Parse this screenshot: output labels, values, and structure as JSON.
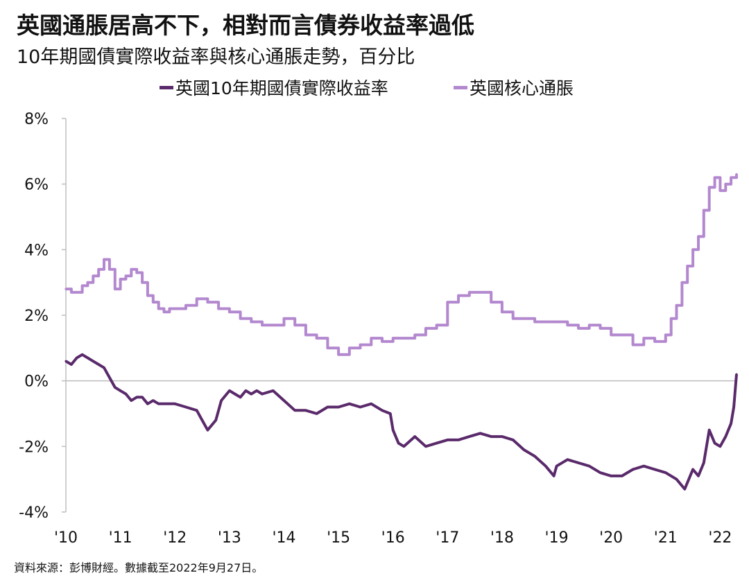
{
  "chart_data": {
    "type": "line",
    "title": "英國通脹居高不下，相對而言債券收益率過低",
    "subtitle": "10年期國債實際收益率與核心通脹走勢，百分比",
    "ylim": [
      -4,
      8
    ],
    "y_ticks": [
      "8%",
      "6%",
      "4%",
      "2%",
      "0%",
      "-2%",
      "-4%"
    ],
    "y_tick_values": [
      8,
      6,
      4,
      2,
      0,
      -2,
      -4
    ],
    "xlim": [
      2010.0,
      2022.3
    ],
    "x_tick_labels": [
      "'10",
      "'11",
      "'12",
      "'13",
      "'14",
      "'15",
      "'16",
      "'17",
      "'18",
      "'19",
      "'20",
      "'21",
      "'22"
    ],
    "x_tick_values": [
      2010,
      2011,
      2012,
      2013,
      2014,
      2015,
      2016,
      2017,
      2018,
      2019,
      2020,
      2021,
      2022
    ],
    "legend_position": "top-center",
    "grid": false,
    "series": [
      {
        "name": "英國10年期國債實際收益率",
        "color": "#5a2a6b",
        "x": [
          2010.0,
          2010.1,
          2010.2,
          2010.3,
          2010.4,
          2010.5,
          2010.6,
          2010.7,
          2010.8,
          2010.9,
          2011.0,
          2011.1,
          2011.2,
          2011.3,
          2011.4,
          2011.5,
          2011.6,
          2011.7,
          2011.8,
          2012.0,
          2012.2,
          2012.4,
          2012.5,
          2012.6,
          2012.75,
          2012.85,
          2013.0,
          2013.1,
          2013.2,
          2013.3,
          2013.4,
          2013.5,
          2013.6,
          2013.8,
          2014.0,
          2014.2,
          2014.4,
          2014.6,
          2014.8,
          2015.0,
          2015.2,
          2015.4,
          2015.6,
          2015.8,
          2015.95,
          2016.0,
          2016.1,
          2016.2,
          2016.4,
          2016.6,
          2016.8,
          2017.0,
          2017.2,
          2017.4,
          2017.6,
          2017.8,
          2018.0,
          2018.2,
          2018.4,
          2018.6,
          2018.8,
          2018.95,
          2019.0,
          2019.2,
          2019.4,
          2019.6,
          2019.8,
          2020.0,
          2020.2,
          2020.4,
          2020.6,
          2020.8,
          2021.0,
          2021.2,
          2021.35,
          2021.45,
          2021.5,
          2021.6,
          2021.7,
          2021.8,
          2021.9,
          2022.0,
          2022.1,
          2022.2,
          2022.25,
          2022.3
        ],
        "values": [
          0.6,
          0.5,
          0.7,
          0.8,
          0.7,
          0.6,
          0.5,
          0.4,
          0.1,
          -0.2,
          -0.3,
          -0.4,
          -0.6,
          -0.5,
          -0.5,
          -0.7,
          -0.6,
          -0.7,
          -0.7,
          -0.7,
          -0.8,
          -0.9,
          -1.2,
          -1.5,
          -1.2,
          -0.6,
          -0.3,
          -0.4,
          -0.5,
          -0.3,
          -0.4,
          -0.3,
          -0.4,
          -0.3,
          -0.6,
          -0.9,
          -0.9,
          -1.0,
          -0.8,
          -0.8,
          -0.7,
          -0.8,
          -0.7,
          -0.9,
          -1.0,
          -1.5,
          -1.9,
          -2.0,
          -1.7,
          -2.0,
          -1.9,
          -1.8,
          -1.8,
          -1.7,
          -1.6,
          -1.7,
          -1.7,
          -1.8,
          -2.1,
          -2.3,
          -2.6,
          -2.9,
          -2.6,
          -2.4,
          -2.5,
          -2.6,
          -2.8,
          -2.9,
          -2.9,
          -2.7,
          -2.6,
          -2.7,
          -2.8,
          -3.0,
          -3.3,
          -2.9,
          -2.7,
          -2.9,
          -2.5,
          -1.5,
          -1.9,
          -2.0,
          -1.7,
          -1.3,
          -0.8,
          0.2
        ]
      },
      {
        "name": "英國核心通脹",
        "color": "#b388cf",
        "x": [
          2010.0,
          2010.1,
          2010.2,
          2010.3,
          2010.4,
          2010.5,
          2010.6,
          2010.7,
          2010.8,
          2010.9,
          2011.0,
          2011.1,
          2011.2,
          2011.3,
          2011.4,
          2011.5,
          2011.6,
          2011.7,
          2011.8,
          2011.9,
          2012.0,
          2012.2,
          2012.4,
          2012.6,
          2012.8,
          2013.0,
          2013.2,
          2013.4,
          2013.6,
          2013.8,
          2014.0,
          2014.2,
          2014.4,
          2014.6,
          2014.8,
          2015.0,
          2015.2,
          2015.4,
          2015.6,
          2015.8,
          2016.0,
          2016.2,
          2016.4,
          2016.6,
          2016.8,
          2017.0,
          2017.2,
          2017.4,
          2017.6,
          2017.8,
          2018.0,
          2018.2,
          2018.4,
          2018.6,
          2018.8,
          2019.0,
          2019.2,
          2019.4,
          2019.6,
          2019.8,
          2020.0,
          2020.2,
          2020.4,
          2020.6,
          2020.8,
          2021.0,
          2021.1,
          2021.2,
          2021.3,
          2021.4,
          2021.5,
          2021.6,
          2021.7,
          2021.8,
          2021.9,
          2022.0,
          2022.1,
          2022.2,
          2022.3
        ],
        "values": [
          2.8,
          2.7,
          2.7,
          2.9,
          3.0,
          3.2,
          3.4,
          3.7,
          3.4,
          2.8,
          3.1,
          3.2,
          3.4,
          3.3,
          3.0,
          2.6,
          2.4,
          2.2,
          2.1,
          2.2,
          2.2,
          2.3,
          2.5,
          2.4,
          2.2,
          2.1,
          1.9,
          1.8,
          1.7,
          1.7,
          1.9,
          1.7,
          1.4,
          1.3,
          1.0,
          0.8,
          1.0,
          1.1,
          1.3,
          1.2,
          1.3,
          1.3,
          1.4,
          1.6,
          1.7,
          2.4,
          2.6,
          2.7,
          2.7,
          2.4,
          2.1,
          1.9,
          1.9,
          1.8,
          1.8,
          1.8,
          1.7,
          1.6,
          1.7,
          1.6,
          1.4,
          1.4,
          1.1,
          1.3,
          1.2,
          1.4,
          1.9,
          2.3,
          3.0,
          3.5,
          4.0,
          4.4,
          5.2,
          5.9,
          6.2,
          5.8,
          6.0,
          6.2,
          6.3
        ]
      }
    ]
  },
  "source": "資料來源：彭博財經。數據截至2022年9月27日。"
}
